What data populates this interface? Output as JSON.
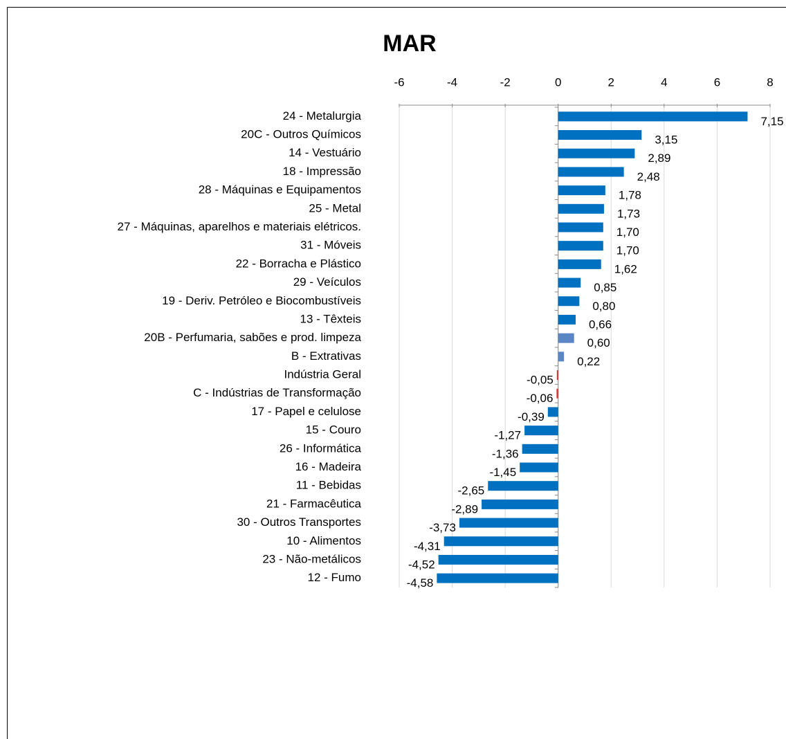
{
  "chart_data": {
    "type": "barh",
    "title": "MAR",
    "categories": [
      "24 - Metalurgia",
      "20C - Outros Químicos",
      "14 - Vestuário",
      "18 - Impressão",
      "28 - Máquinas e Equipamentos",
      "25 - Metal",
      "27 - Máquinas, aparelhos e materiais elétricos.",
      "31 - Móveis",
      "22 - Borracha e Plástico",
      "29 - Veículos",
      "19 - Deriv. Petróleo e Biocombustíveis",
      "13 - Têxteis",
      "20B - Perfumaria, sabões e prod. limpeza",
      "B - Extrativas",
      "Indústria Geral",
      "C - Indústrias de Transformação",
      "17 - Papel e celulose",
      "15 - Couro",
      "26 - Informática",
      "16 - Madeira",
      "11 - Bebidas",
      "21 - Farmacêutica",
      "30 - Outros Transportes",
      "10 - Alimentos",
      "23 - Não-metálicos",
      "12 - Fumo"
    ],
    "values": [
      7.15,
      3.15,
      2.89,
      2.48,
      1.78,
      1.73,
      1.7,
      1.7,
      1.62,
      0.85,
      0.8,
      0.66,
      0.6,
      0.22,
      -0.05,
      -0.06,
      -0.39,
      -1.27,
      -1.36,
      -1.45,
      -2.65,
      -2.89,
      -3.73,
      -4.31,
      -4.52,
      -4.58
    ],
    "value_labels": [
      "7,15",
      "3,15",
      "2,89",
      "2,48",
      "1,78",
      "1,73",
      "1,70",
      "1,70",
      "1,62",
      "0,85",
      "0,80",
      "0,66",
      "0,60",
      "0,22",
      "-0,05",
      "-0,06",
      "-0,39",
      "-1,27",
      "-1,36",
      "-1,45",
      "-2,65",
      "-2,89",
      "-3,73",
      "-4,31",
      "-4,52",
      "-4,58"
    ],
    "colors": [
      "#0070c0",
      "#0070c0",
      "#0070c0",
      "#0070c0",
      "#0070c0",
      "#0070c0",
      "#0070c0",
      "#0070c0",
      "#0070c0",
      "#0070c0",
      "#0070c0",
      "#0070c0",
      "#5b86c5",
      "#5b86c5",
      "#e03030",
      "#e03030",
      "#0070c0",
      "#0070c0",
      "#0070c0",
      "#0070c0",
      "#0070c0",
      "#0070c0",
      "#0070c0",
      "#0070c0",
      "#0070c0",
      "#0070c0"
    ],
    "xlim": [
      -6,
      8
    ],
    "xticks": [
      -6,
      -4,
      -2,
      0,
      2,
      4,
      6,
      8
    ],
    "grid": true
  }
}
